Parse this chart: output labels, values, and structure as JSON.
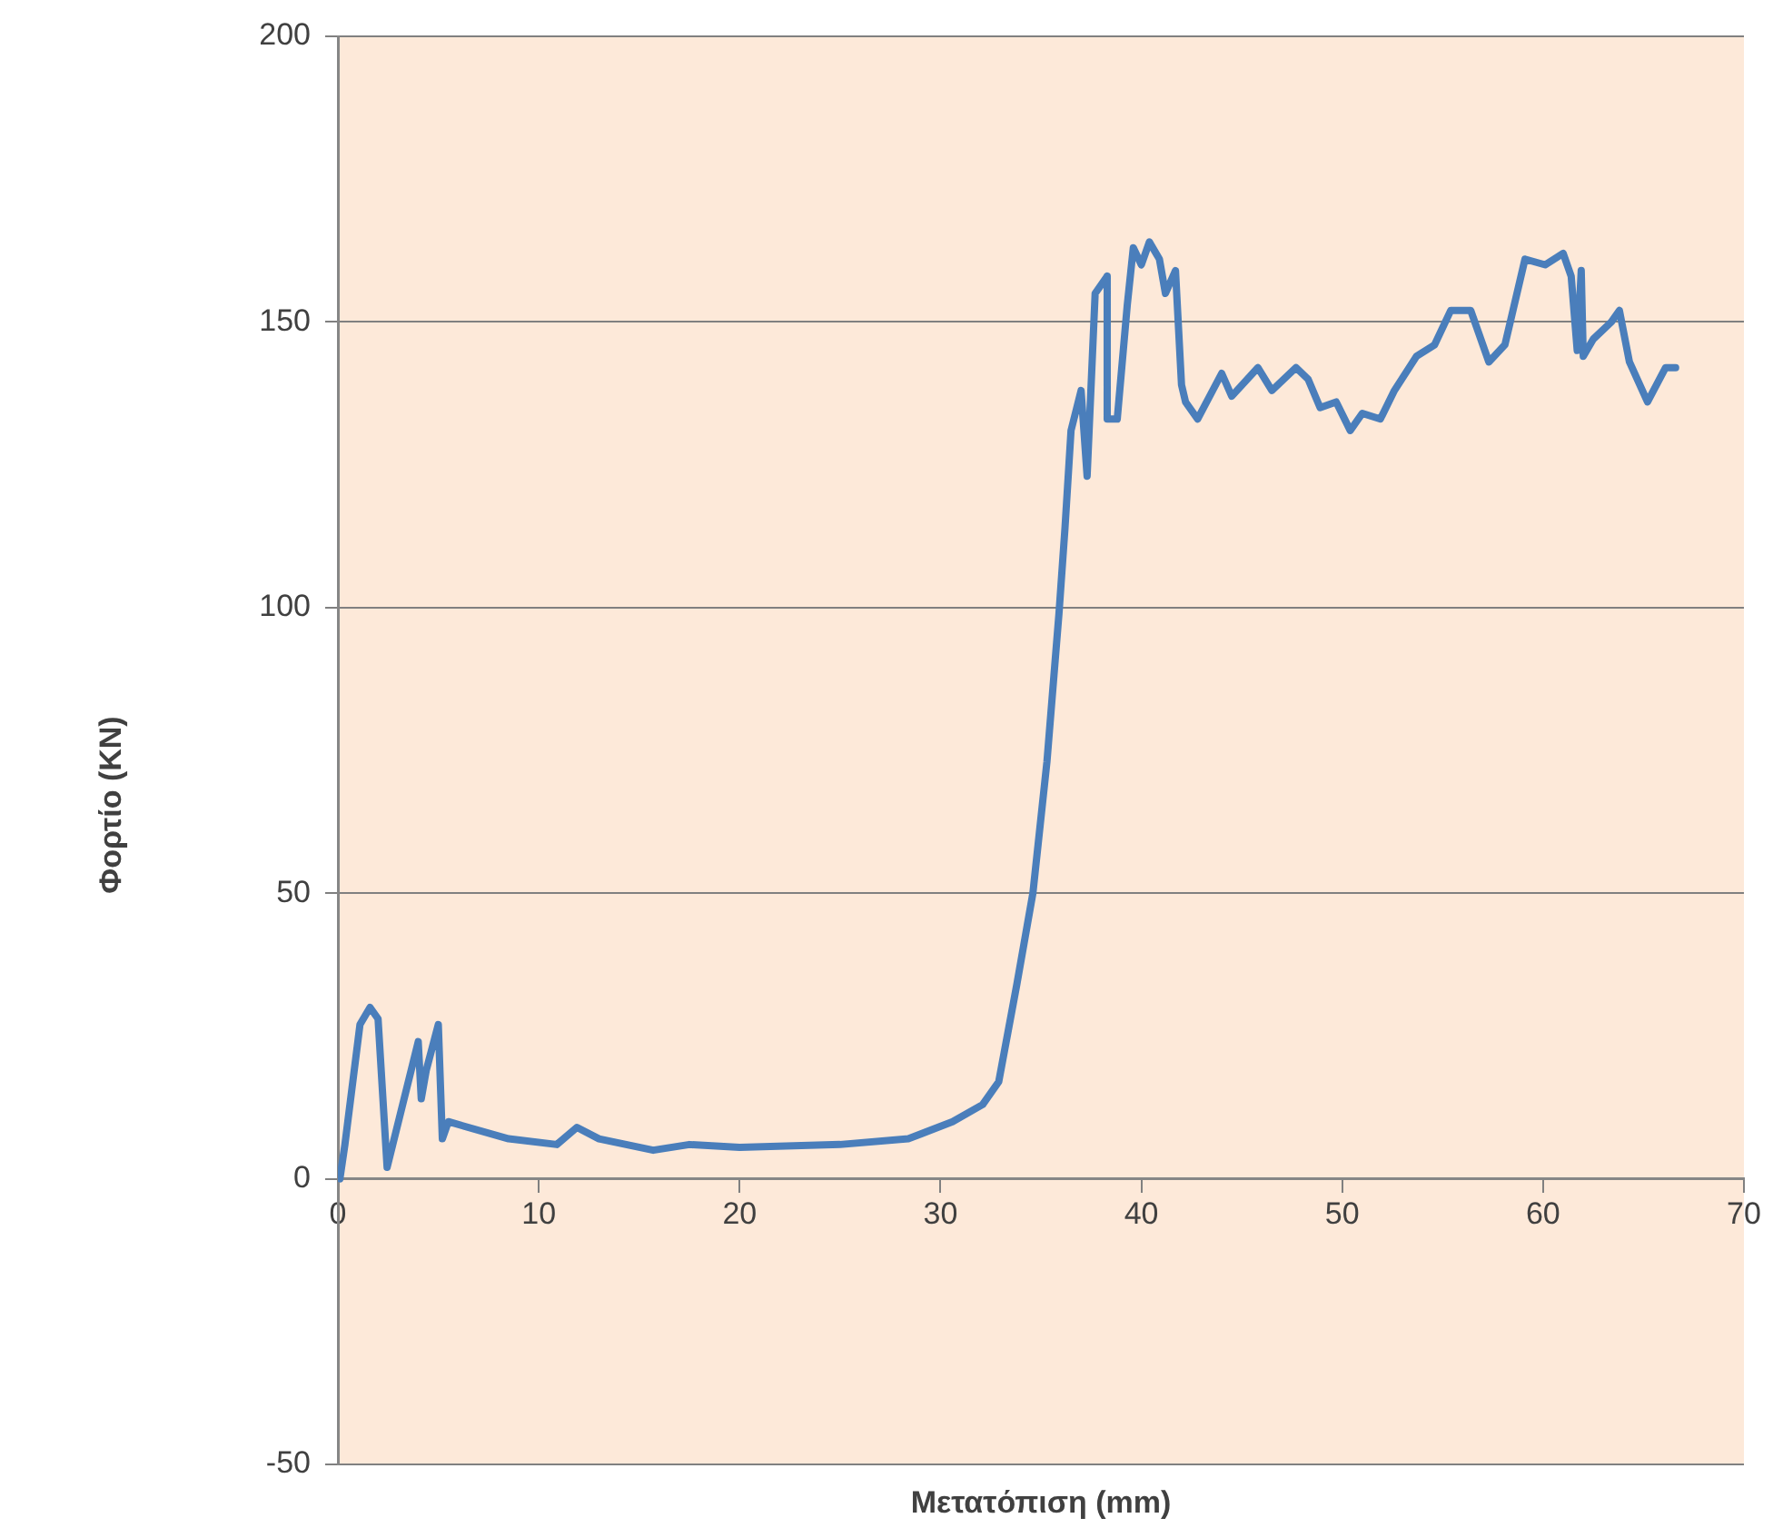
{
  "chart_data": {
    "type": "line",
    "xlabel": "Μετατόπιση (mm)",
    "ylabel": "Φορτίο (KN)",
    "xlim": [
      0,
      70
    ],
    "xticks": [
      0,
      10,
      20,
      30,
      40,
      50,
      60,
      70
    ],
    "ylim": [
      -50,
      200
    ],
    "yticks": [
      -50,
      0,
      50,
      100,
      150,
      200
    ],
    "grid": "y",
    "legend": false,
    "marker": "none",
    "line_style": "solid",
    "series": [
      {
        "color": "#4a7ebb",
        "x": [
          0.1,
          0.35,
          1.1,
          1.6,
          2.0,
          2.45,
          4.0,
          4.15,
          4.4,
          5.0,
          5.2,
          5.5,
          8.5,
          10.9,
          11.9,
          13,
          15.7,
          17.5,
          20,
          25,
          28.4,
          30.6,
          32.1,
          32.9,
          33.8,
          34.6,
          35.3,
          35.9,
          36.2,
          36.5,
          37.0,
          37.3,
          37.7,
          38.3,
          38.3,
          38.8,
          39.3,
          39.6,
          40.0,
          40.4,
          40.9,
          41.2,
          41.7,
          42.0,
          42.2,
          42.8,
          44.0,
          44.5,
          45.8,
          46.5,
          47.7,
          48.3,
          48.9,
          49.7,
          50.4,
          51.0,
          51.9,
          52.6,
          53.7,
          54.6,
          55.4,
          56.4,
          57.3,
          58.1,
          59.1,
          60.1,
          61.0,
          61.4,
          61.7,
          61.9,
          62.0,
          62.5,
          63.4,
          63.8,
          64.3,
          65.2,
          66.1,
          66.6
        ],
        "values": [
          0,
          6,
          27,
          30,
          28,
          2,
          24,
          14,
          19,
          27,
          7,
          10,
          7,
          6,
          9,
          7,
          5,
          6,
          5.5,
          6,
          7,
          10,
          13,
          17,
          34,
          50,
          73,
          99,
          114,
          131,
          138,
          123,
          155,
          158,
          133,
          133,
          153,
          163,
          160,
          164,
          161,
          155,
          159,
          139,
          136,
          133,
          141,
          137,
          142,
          138,
          142,
          140,
          135,
          136,
          131,
          134,
          133,
          138,
          144,
          146,
          152,
          152,
          143,
          146,
          161,
          160,
          162,
          158,
          145,
          159,
          144,
          147,
          150,
          152,
          143,
          136,
          142,
          142
        ]
      }
    ]
  }
}
